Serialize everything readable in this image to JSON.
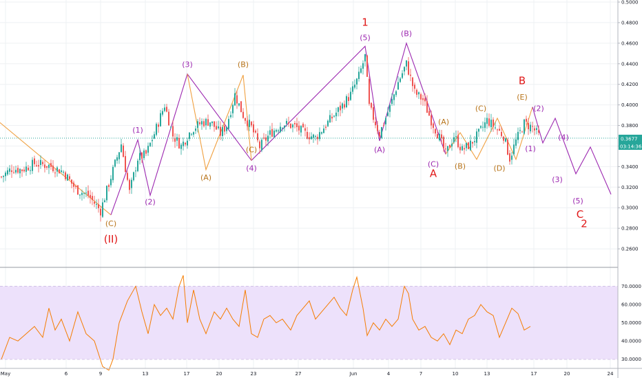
{
  "colors": {
    "up": "#26a69a",
    "down": "#ef5350",
    "purple": "#9c27b0",
    "orange": "#f0a040",
    "red": "#e01818",
    "rsi_line": "#f57c00",
    "rsi_band": "#ede1fb",
    "price_line": "#26a69a",
    "grid": "#eef0f3"
  },
  "price_tag": {
    "value": "0.3677",
    "timer": "03:14:36"
  },
  "chart_data": [
    {
      "type": "candlestick",
      "title": "",
      "ylim": [
        0.24,
        0.5
      ],
      "y_ticks": [
        "0.5000",
        "0.4800",
        "0.4600",
        "0.4400",
        "0.4200",
        "0.4000",
        "0.3800",
        "0.3600",
        "0.3400",
        "0.3200",
        "0.3000",
        "0.2800",
        "0.2600"
      ],
      "x_ticks": [
        "May",
        "6",
        "9",
        "13",
        "17",
        "20",
        "23",
        "27",
        "Jun",
        "4",
        "7",
        "10",
        "13",
        "17",
        "20",
        "24"
      ],
      "close_path": [
        [
          0,
          0.33
        ],
        [
          5,
          0.338
        ],
        [
          10,
          0.337
        ],
        [
          16,
          0.343
        ],
        [
          23,
          0.341
        ],
        [
          30,
          0.335
        ],
        [
          36,
          0.318
        ],
        [
          42,
          0.312
        ],
        [
          48,
          0.297
        ],
        [
          53,
          0.33
        ],
        [
          58,
          0.362
        ],
        [
          62,
          0.315
        ],
        [
          66,
          0.348
        ],
        [
          70,
          0.352
        ],
        [
          74,
          0.372
        ],
        [
          79,
          0.4
        ],
        [
          83,
          0.37
        ],
        [
          87,
          0.36
        ],
        [
          92,
          0.376
        ],
        [
          97,
          0.383
        ],
        [
          101,
          0.384
        ],
        [
          106,
          0.372
        ],
        [
          109,
          0.38
        ],
        [
          113,
          0.41
        ],
        [
          117,
          0.39
        ],
        [
          121,
          0.378
        ],
        [
          125,
          0.359
        ],
        [
          130,
          0.372
        ],
        [
          136,
          0.382
        ],
        [
          142,
          0.379
        ],
        [
          147,
          0.372
        ],
        [
          152,
          0.368
        ],
        [
          158,
          0.383
        ],
        [
          164,
          0.397
        ],
        [
          169,
          0.41
        ],
        [
          173,
          0.428
        ],
        [
          176,
          0.447
        ],
        [
          178,
          0.398
        ],
        [
          183,
          0.372
        ],
        [
          188,
          0.398
        ],
        [
          192,
          0.422
        ],
        [
          196,
          0.44
        ],
        [
          200,
          0.412
        ],
        [
          204,
          0.405
        ],
        [
          208,
          0.385
        ],
        [
          212,
          0.368
        ],
        [
          215,
          0.352
        ],
        [
          219,
          0.37
        ],
        [
          223,
          0.356
        ],
        [
          227,
          0.362
        ],
        [
          231,
          0.372
        ],
        [
          235,
          0.385
        ],
        [
          239,
          0.378
        ],
        [
          243,
          0.37
        ],
        [
          246,
          0.348
        ],
        [
          249,
          0.365
        ],
        [
          253,
          0.382
        ],
        [
          257,
          0.378
        ],
        [
          260,
          0.37
        ]
      ],
      "candle_seed": 7,
      "price_line_value": 0.3677,
      "waves": [
        {
          "name": "minor-orange-decline",
          "color": "orange",
          "points": [
            [
              -5,
              0.39
            ],
            [
              53,
              0.293
            ]
          ]
        },
        {
          "name": "purple-primary",
          "color": "purple",
          "points": [
            [
              53,
              0.293
            ],
            [
              66,
              0.366
            ],
            [
              72,
              0.312
            ],
            [
              90,
              0.43
            ],
            [
              121,
              0.346
            ],
            [
              176,
              0.457
            ],
            [
              183,
              0.365
            ],
            [
              196,
              0.46
            ],
            [
              215,
              0.352
            ]
          ]
        },
        {
          "name": "orange-abc-1",
          "color": "orange",
          "points": [
            [
              90,
              0.43
            ],
            [
              99,
              0.337
            ],
            [
              117,
              0.429
            ],
            [
              121,
              0.346
            ]
          ]
        },
        {
          "name": "orange-triangle",
          "color": "orange",
          "points": [
            [
              215,
              0.352
            ],
            [
              222,
              0.373
            ],
            [
              230,
              0.347
            ],
            [
              240,
              0.387
            ],
            [
              249,
              0.347
            ],
            [
              257,
              0.398
            ]
          ]
        },
        {
          "name": "projection",
          "color": "purple",
          "points": [
            [
              257,
              0.398
            ],
            [
              262,
              0.363
            ],
            [
              268,
              0.387
            ],
            [
              278,
              0.333
            ],
            [
              285,
              0.359
            ],
            [
              295,
              0.313
            ]
          ]
        }
      ],
      "wave_labels": [
        {
          "text": "(C)",
          "color": "orange",
          "x": 53,
          "y": 0.282
        },
        {
          "text": "(II)",
          "color": "red",
          "x": 53,
          "y": 0.266
        },
        {
          "text": "(1)",
          "color": "purple",
          "x": 66,
          "y": 0.373
        },
        {
          "text": "(2)",
          "color": "purple",
          "x": 72,
          "y": 0.303
        },
        {
          "text": "(3)",
          "color": "purple",
          "x": 90,
          "y": 0.437
        },
        {
          "text": "(A)",
          "color": "orange",
          "x": 99,
          "y": 0.327
        },
        {
          "text": "(B)",
          "color": "orange",
          "x": 117,
          "y": 0.437
        },
        {
          "text": "(C)",
          "color": "orange",
          "x": 121,
          "y": 0.354
        },
        {
          "text": "(4)",
          "color": "purple",
          "x": 121,
          "y": 0.336
        },
        {
          "text": "(5)",
          "color": "purple",
          "x": 176,
          "y": 0.463
        },
        {
          "text": "1",
          "color": "red",
          "x": 176,
          "y": 0.477
        },
        {
          "text": "(A)",
          "color": "purple",
          "x": 183,
          "y": 0.354
        },
        {
          "text": "(B)",
          "color": "purple",
          "x": 196,
          "y": 0.467
        },
        {
          "text": "(C)",
          "color": "purple",
          "x": 209,
          "y": 0.34
        },
        {
          "text": "A",
          "color": "red",
          "x": 209,
          "y": 0.33
        },
        {
          "text": "(A)",
          "color": "orange",
          "x": 214,
          "y": 0.381
        },
        {
          "text": "(B)",
          "color": "orange",
          "x": 222,
          "y": 0.338
        },
        {
          "text": "(C)",
          "color": "orange",
          "x": 232,
          "y": 0.394
        },
        {
          "text": "(D)",
          "color": "orange",
          "x": 241,
          "y": 0.336
        },
        {
          "text": "(E)",
          "color": "orange",
          "x": 252,
          "y": 0.405
        },
        {
          "text": "B",
          "color": "red",
          "x": 252,
          "y": 0.42
        },
        {
          "text": "(1)",
          "color": "purple",
          "x": 256,
          "y": 0.355
        },
        {
          "text": "(2)",
          "color": "purple",
          "x": 260,
          "y": 0.394
        },
        {
          "text": "(4)",
          "color": "purple",
          "x": 272,
          "y": 0.366
        },
        {
          "text": "(3)",
          "color": "purple",
          "x": 269,
          "y": 0.325
        },
        {
          "text": "(5)",
          "color": "purple",
          "x": 279,
          "y": 0.304
        },
        {
          "text": "C",
          "color": "red",
          "x": 280,
          "y": 0.29
        },
        {
          "text": "2",
          "color": "red",
          "x": 282,
          "y": 0.281
        }
      ]
    },
    {
      "type": "line",
      "title": "",
      "ylim": [
        25,
        80
      ],
      "y_ticks": [
        "70.0000",
        "60.0000",
        "50.0000",
        "40.0000",
        "30.0000"
      ],
      "band": [
        30,
        70
      ],
      "rsi_path": [
        [
          0,
          30
        ],
        [
          4,
          42
        ],
        [
          8,
          40
        ],
        [
          12,
          44
        ],
        [
          16,
          48
        ],
        [
          20,
          42
        ],
        [
          23,
          58
        ],
        [
          26,
          46
        ],
        [
          29,
          52
        ],
        [
          33,
          40
        ],
        [
          37,
          56
        ],
        [
          41,
          44
        ],
        [
          45,
          40
        ],
        [
          49,
          26
        ],
        [
          52,
          24
        ],
        [
          54,
          30
        ],
        [
          57,
          50
        ],
        [
          61,
          62
        ],
        [
          65,
          70
        ],
        [
          68,
          56
        ],
        [
          71,
          44
        ],
        [
          74,
          60
        ],
        [
          77,
          54
        ],
        [
          80,
          58
        ],
        [
          83,
          52
        ],
        [
          86,
          70
        ],
        [
          88,
          76
        ],
        [
          90,
          50
        ],
        [
          93,
          68
        ],
        [
          96,
          52
        ],
        [
          99,
          44
        ],
        [
          103,
          56
        ],
        [
          106,
          52
        ],
        [
          109,
          58
        ],
        [
          112,
          52
        ],
        [
          115,
          48
        ],
        [
          118,
          68
        ],
        [
          121,
          44
        ],
        [
          124,
          42
        ],
        [
          127,
          52
        ],
        [
          130,
          54
        ],
        [
          133,
          50
        ],
        [
          136,
          52
        ],
        [
          140,
          46
        ],
        [
          143,
          54
        ],
        [
          146,
          58
        ],
        [
          149,
          62
        ],
        [
          152,
          52
        ],
        [
          155,
          56
        ],
        [
          158,
          60
        ],
        [
          161,
          64
        ],
        [
          164,
          58
        ],
        [
          167,
          54
        ],
        [
          170,
          68
        ],
        [
          172,
          75
        ],
        [
          175,
          58
        ],
        [
          177,
          43
        ],
        [
          180,
          50
        ],
        [
          183,
          46
        ],
        [
          186,
          52
        ],
        [
          189,
          48
        ],
        [
          192,
          52
        ],
        [
          195,
          70
        ],
        [
          197,
          66
        ],
        [
          199,
          52
        ],
        [
          202,
          46
        ],
        [
          205,
          48
        ],
        [
          208,
          42
        ],
        [
          211,
          40
        ],
        [
          214,
          44
        ],
        [
          217,
          38
        ],
        [
          220,
          46
        ],
        [
          223,
          44
        ],
        [
          226,
          52
        ],
        [
          229,
          54
        ],
        [
          232,
          60
        ],
        [
          235,
          56
        ],
        [
          238,
          54
        ],
        [
          241,
          42
        ],
        [
          244,
          50
        ],
        [
          247,
          58
        ],
        [
          250,
          55
        ],
        [
          253,
          46
        ],
        [
          256,
          48
        ]
      ]
    }
  ]
}
